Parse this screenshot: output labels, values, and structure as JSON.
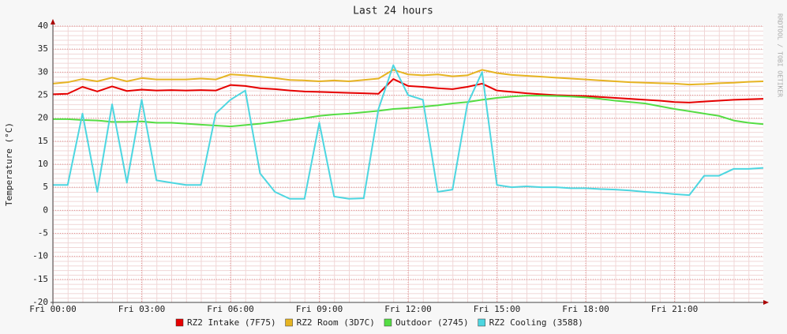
{
  "chart_data": {
    "type": "line",
    "title": "Last 24 hours",
    "y_label": "Temperature (°C)",
    "side_text": "RRDTOOL / TOBI OETIKER",
    "x": [
      0,
      0.5,
      1,
      1.5,
      2,
      2.5,
      3,
      3.5,
      4,
      4.5,
      5,
      5.5,
      6,
      6.5,
      7,
      7.5,
      8,
      8.5,
      9,
      9.5,
      10,
      10.5,
      11,
      11.5,
      12,
      12.5,
      13,
      13.5,
      14,
      14.5,
      15,
      15.5,
      16,
      16.5,
      17,
      17.5,
      18,
      18.5,
      19,
      19.5,
      20,
      20.5,
      21,
      21.5,
      22,
      22.5,
      23,
      23.5,
      24
    ],
    "xlim": [
      0,
      24
    ],
    "xticks": [
      {
        "value": 0,
        "label": "Fri 00:00"
      },
      {
        "value": 3,
        "label": "Fri 03:00"
      },
      {
        "value": 6,
        "label": "Fri 06:00"
      },
      {
        "value": 9,
        "label": "Fri 09:00"
      },
      {
        "value": 12,
        "label": "Fri 12:00"
      },
      {
        "value": 15,
        "label": "Fri 15:00"
      },
      {
        "value": 18,
        "label": "Fri 18:00"
      },
      {
        "value": 21,
        "label": "Fri 21:00"
      }
    ],
    "ylim": [
      -20,
      40
    ],
    "yticks": [
      -20,
      -15,
      -10,
      -5,
      0,
      5,
      10,
      15,
      20,
      25,
      30,
      35,
      40
    ],
    "grid": true,
    "legend": "bottom",
    "series": [
      {
        "name": "RZ2 Intake (7F75)",
        "color": "#e60000",
        "values": [
          25.2,
          25.3,
          26.8,
          25.8,
          26.9,
          25.9,
          26.2,
          26.0,
          26.1,
          26.0,
          26.1,
          26.0,
          27.2,
          27.0,
          26.5,
          26.3,
          26.0,
          25.8,
          25.7,
          25.6,
          25.5,
          25.4,
          25.3,
          28.5,
          27.0,
          26.8,
          26.5,
          26.3,
          26.8,
          27.5,
          26.0,
          25.7,
          25.4,
          25.2,
          25.0,
          24.9,
          24.8,
          24.6,
          24.4,
          24.2,
          24.0,
          23.8,
          23.5,
          23.4,
          23.6,
          23.8,
          24.0,
          24.1,
          24.2
        ]
      },
      {
        "name": "RZ2 Room (3D7C)",
        "color": "#e6b422",
        "values": [
          27.5,
          27.8,
          28.5,
          28.0,
          28.8,
          28.0,
          28.7,
          28.4,
          28.4,
          28.4,
          28.6,
          28.4,
          29.5,
          29.3,
          29.0,
          28.7,
          28.3,
          28.2,
          28.0,
          28.2,
          28.0,
          28.3,
          28.6,
          30.5,
          29.5,
          29.3,
          29.5,
          29.1,
          29.3,
          30.5,
          29.8,
          29.4,
          29.2,
          29.0,
          28.8,
          28.6,
          28.4,
          28.2,
          28.0,
          27.8,
          27.7,
          27.6,
          27.5,
          27.3,
          27.4,
          27.6,
          27.7,
          27.9,
          28.0
        ]
      },
      {
        "name": "Outdoor (2745)",
        "color": "#55dd44",
        "values": [
          19.8,
          19.8,
          19.6,
          19.5,
          19.2,
          19.2,
          19.3,
          19.0,
          19.0,
          18.8,
          18.6,
          18.4,
          18.2,
          18.5,
          18.8,
          19.2,
          19.6,
          20.0,
          20.5,
          20.8,
          21.0,
          21.3,
          21.6,
          22.0,
          22.2,
          22.5,
          22.8,
          23.2,
          23.5,
          24.0,
          24.4,
          24.7,
          24.9,
          24.9,
          24.8,
          24.7,
          24.5,
          24.2,
          23.8,
          23.5,
          23.2,
          22.6,
          22.0,
          21.5,
          21.0,
          20.5,
          19.5,
          19.0,
          18.7
        ]
      },
      {
        "name": "RZ2 Cooling (3588)",
        "color": "#4dd6e0",
        "values": [
          5.5,
          5.5,
          21.0,
          4.0,
          23.0,
          6.0,
          24.0,
          6.5,
          6.0,
          5.5,
          5.5,
          21.0,
          24.0,
          26.0,
          8.0,
          4.0,
          2.5,
          2.5,
          19.0,
          3.0,
          2.5,
          2.6,
          22.0,
          31.5,
          25.0,
          24.0,
          4.0,
          4.5,
          23.0,
          30.0,
          5.5,
          5.0,
          5.2,
          5.0,
          5.0,
          4.8,
          4.8,
          4.6,
          4.5,
          4.3,
          4.0,
          3.8,
          3.5,
          3.3,
          7.5,
          7.5,
          9.0,
          9.0,
          9.2
        ]
      }
    ]
  }
}
